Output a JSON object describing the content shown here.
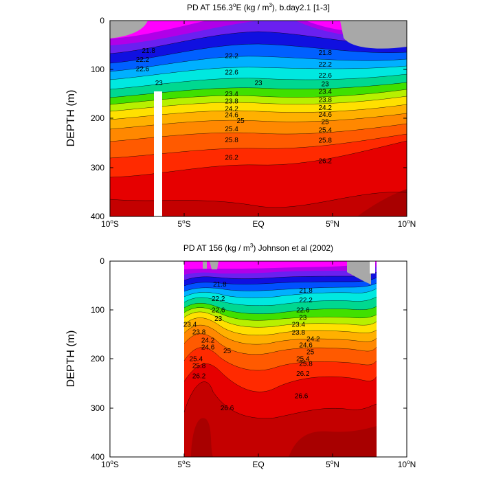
{
  "chart_data": [
    {
      "type": "contour",
      "title_prefix": "PD AT 156.3",
      "title_sup": "o",
      "title_mid": "E (kg / m",
      "title_sup2": "3",
      "title_suffix": "), b.day2.1 [1-3]",
      "ylabel": "DEPTH (m)",
      "xlim": [
        -10,
        10
      ],
      "ylim": [
        0,
        400
      ],
      "y_ticks": [
        "0",
        "100",
        "200",
        "300",
        "400"
      ],
      "x_ticks": [
        {
          "num": "10",
          "sup": "o",
          "hem": "S"
        },
        {
          "num": "5",
          "sup": "o",
          "hem": "S"
        },
        {
          "num": "",
          "sup": "",
          "hem": "EQ"
        },
        {
          "num": "5",
          "sup": "o",
          "hem": "N"
        },
        {
          "num": "10",
          "sup": "o",
          "hem": "N"
        }
      ],
      "data_lon_range": [
        -10,
        10
      ],
      "missing_column_lon": -6.8,
      "contour_levels": [
        21.8,
        22.2,
        22.6,
        23.0,
        23.4,
        23.8,
        24.2,
        24.6,
        25.0,
        25.4,
        25.8,
        26.2
      ],
      "contour_labels": [
        {
          "text": "21.8",
          "lon": -7.4,
          "depth": 62
        },
        {
          "text": "22.2",
          "lon": -7.8,
          "depth": 80
        },
        {
          "text": "22.6",
          "lon": -7.8,
          "depth": 99
        },
        {
          "text": "23",
          "lon": -6.7,
          "depth": 128
        },
        {
          "text": "22.2",
          "lon": -1.8,
          "depth": 72
        },
        {
          "text": "22.6",
          "lon": -1.8,
          "depth": 106
        },
        {
          "text": "23",
          "lon": 0,
          "depth": 128
        },
        {
          "text": "23.4",
          "lon": -1.8,
          "depth": 150
        },
        {
          "text": "23.8",
          "lon": -1.8,
          "depth": 165
        },
        {
          "text": "24.2",
          "lon": -1.8,
          "depth": 180
        },
        {
          "text": "24.6",
          "lon": -1.8,
          "depth": 193
        },
        {
          "text": "25",
          "lon": -1.2,
          "depth": 205
        },
        {
          "text": "25.4",
          "lon": -1.8,
          "depth": 222
        },
        {
          "text": "25.8",
          "lon": -1.8,
          "depth": 244
        },
        {
          "text": "26.2",
          "lon": -1.8,
          "depth": 280
        },
        {
          "text": "21.8",
          "lon": 4.5,
          "depth": 66
        },
        {
          "text": "22.2",
          "lon": 4.5,
          "depth": 90
        },
        {
          "text": "22.6",
          "lon": 4.5,
          "depth": 112
        },
        {
          "text": "23",
          "lon": 4.5,
          "depth": 130
        },
        {
          "text": "23.4",
          "lon": 4.5,
          "depth": 145
        },
        {
          "text": "23.8",
          "lon": 4.5,
          "depth": 162
        },
        {
          "text": "24.2",
          "lon": 4.5,
          "depth": 178
        },
        {
          "text": "24.6",
          "lon": 4.5,
          "depth": 192
        },
        {
          "text": "25",
          "lon": 4.5,
          "depth": 207
        },
        {
          "text": "25.4",
          "lon": 4.5,
          "depth": 224
        },
        {
          "text": "25.8",
          "lon": 4.5,
          "depth": 245
        },
        {
          "text": "26.2",
          "lon": 4.5,
          "depth": 287
        }
      ]
    },
    {
      "type": "contour",
      "title_prefix": "PD AT 156 (kg / m",
      "title_sup": "3",
      "title_suffix": ") Johnson et al (2002)",
      "ylabel": "DEPTH (m)",
      "xlim": [
        -10,
        10
      ],
      "ylim": [
        0,
        400
      ],
      "y_ticks": [
        "0",
        "100",
        "200",
        "300",
        "400"
      ],
      "x_ticks": [
        {
          "num": "10",
          "sup": "o",
          "hem": "S"
        },
        {
          "num": "5",
          "sup": "o",
          "hem": "S"
        },
        {
          "num": "",
          "sup": "",
          "hem": "EQ"
        },
        {
          "num": "5",
          "sup": "o",
          "hem": "N"
        },
        {
          "num": "10",
          "sup": "o",
          "hem": "N"
        }
      ],
      "data_lon_range": [
        -5,
        8
      ],
      "contour_levels": [
        21.8,
        22.2,
        22.6,
        23.0,
        23.4,
        23.8,
        24.2,
        24.6,
        25.0,
        25.4,
        25.8,
        26.2,
        26.6
      ],
      "contour_labels": [
        {
          "text": "21.8",
          "lon": -2.6,
          "depth": 48
        },
        {
          "text": "22.2",
          "lon": -2.7,
          "depth": 77
        },
        {
          "text": "22.6",
          "lon": -2.7,
          "depth": 100
        },
        {
          "text": "23",
          "lon": -2.7,
          "depth": 118
        },
        {
          "text": "23.4",
          "lon": -4.6,
          "depth": 130
        },
        {
          "text": "23.8",
          "lon": -4.0,
          "depth": 145
        },
        {
          "text": "24.2",
          "lon": -3.4,
          "depth": 162
        },
        {
          "text": "24.6",
          "lon": -3.4,
          "depth": 176
        },
        {
          "text": "25",
          "lon": -2.1,
          "depth": 184
        },
        {
          "text": "25.4",
          "lon": -4.2,
          "depth": 200
        },
        {
          "text": "25.8",
          "lon": -4.0,
          "depth": 214
        },
        {
          "text": "26.2",
          "lon": -4.0,
          "depth": 235
        },
        {
          "text": "26.6",
          "lon": -2.1,
          "depth": 300
        },
        {
          "text": "21.8",
          "lon": 3.2,
          "depth": 60
        },
        {
          "text": "22.2",
          "lon": 3.2,
          "depth": 80
        },
        {
          "text": "22.6",
          "lon": 3.0,
          "depth": 100
        },
        {
          "text": "23",
          "lon": 3.0,
          "depth": 116
        },
        {
          "text": "23.4",
          "lon": 2.7,
          "depth": 130
        },
        {
          "text": "23.8",
          "lon": 2.7,
          "depth": 146
        },
        {
          "text": "24.2",
          "lon": 3.7,
          "depth": 159
        },
        {
          "text": "24.6",
          "lon": 3.2,
          "depth": 172
        },
        {
          "text": "25",
          "lon": 3.5,
          "depth": 186
        },
        {
          "text": "25.4",
          "lon": 3.0,
          "depth": 200
        },
        {
          "text": "25.8",
          "lon": 3.2,
          "depth": 210
        },
        {
          "text": "26.2",
          "lon": 3.0,
          "depth": 230
        },
        {
          "text": "26.6",
          "lon": 2.9,
          "depth": 276
        }
      ]
    }
  ]
}
